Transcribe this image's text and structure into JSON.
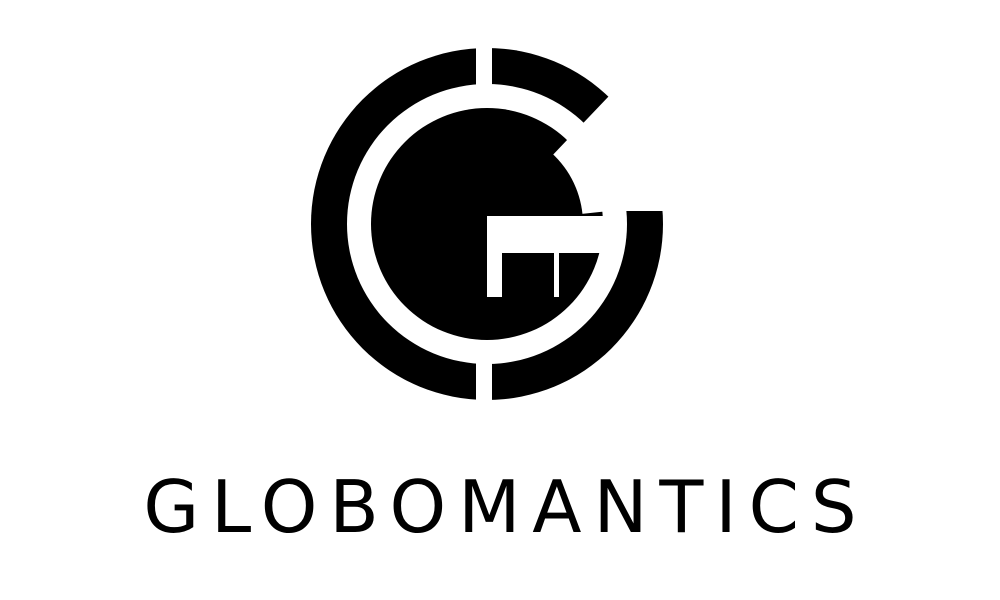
{
  "logo": {
    "wordmark": "GLOBOMANTICS",
    "mark_icon": "circle-g-logo-icon",
    "colors": {
      "foreground": "#000000",
      "background": "#ffffff"
    }
  }
}
